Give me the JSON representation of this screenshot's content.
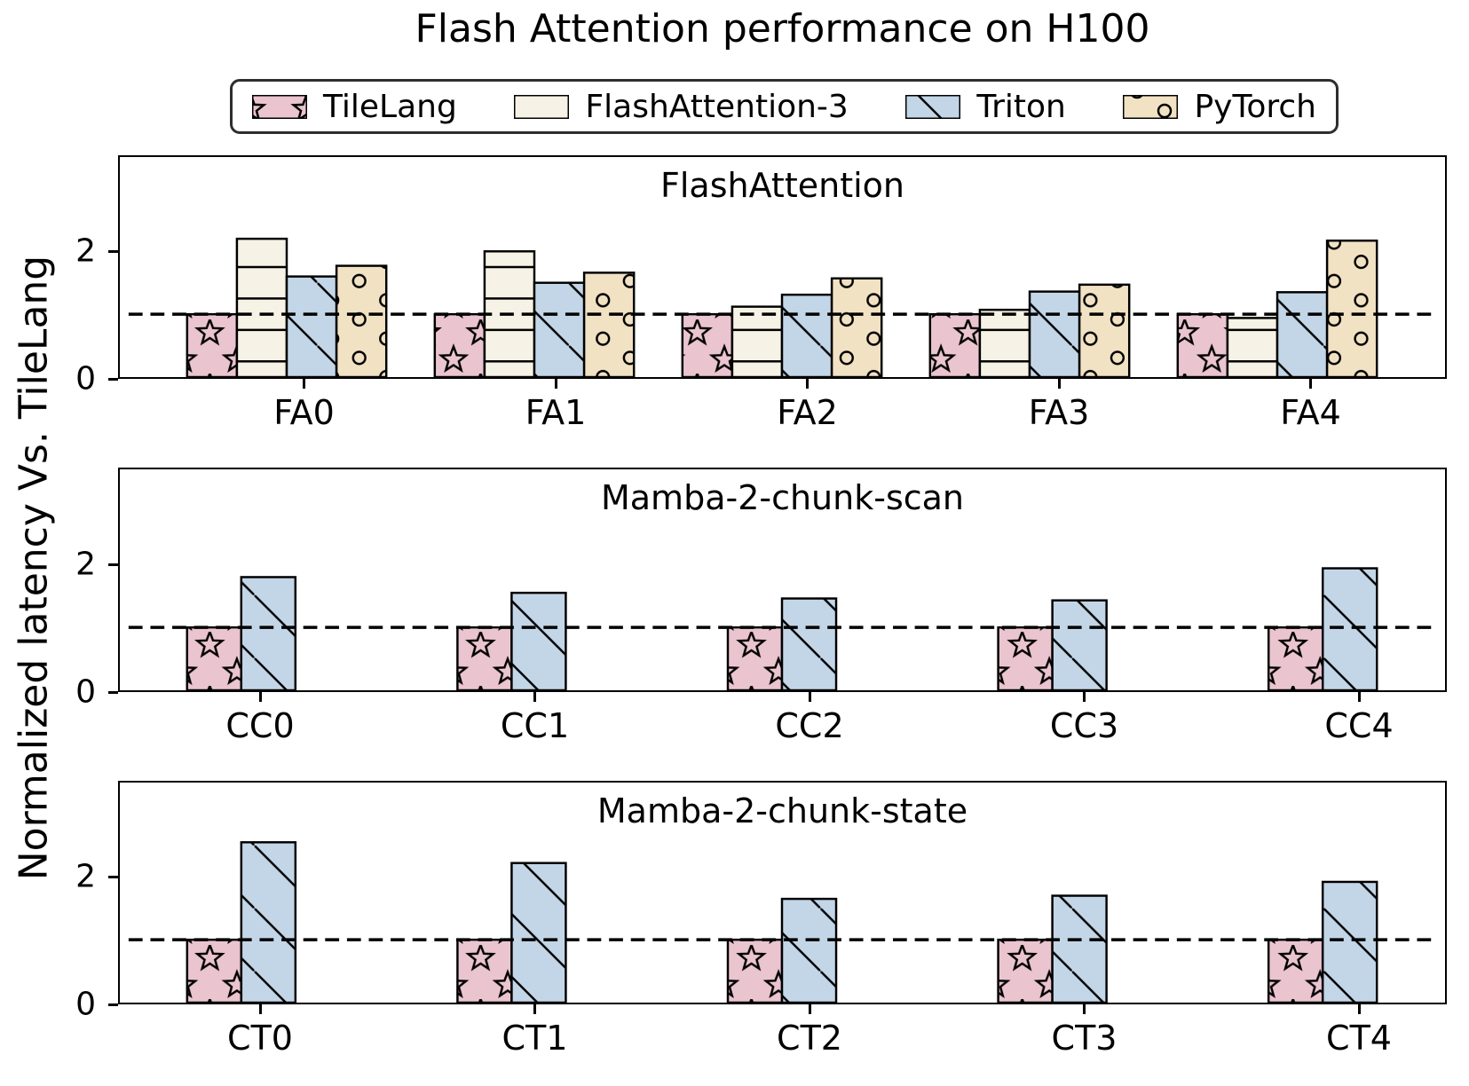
{
  "title": "Flash Attention performance on H100",
  "ylabel": "Normalized latency Vs. TileLang",
  "legend": {
    "items": [
      {
        "label": "TileLang",
        "hatch": "star",
        "color": "#eac4cf"
      },
      {
        "label": "FlashAttention-3",
        "hatch": "hline",
        "color": "#f6f2e5"
      },
      {
        "label": "Triton",
        "hatch": "diag",
        "color": "#c3d6e7"
      },
      {
        "label": "PyTorch",
        "hatch": "circle",
        "color": "#f2e2c4"
      }
    ]
  },
  "baseline": {
    "value": 1.0,
    "style": "dashed",
    "color": "#000000"
  },
  "axis": {
    "yticks": [
      0,
      2
    ],
    "ylim": [
      0,
      3.5
    ]
  },
  "chart_data": [
    {
      "type": "bar",
      "title": "FlashAttention",
      "categories": [
        "FA0",
        "FA1",
        "FA2",
        "FA3",
        "FA4"
      ],
      "series": [
        {
          "name": "TileLang",
          "values": [
            1.0,
            1.0,
            1.0,
            1.0,
            1.0
          ]
        },
        {
          "name": "FlashAttention-3",
          "values": [
            2.2,
            2.0,
            1.12,
            1.07,
            0.94
          ]
        },
        {
          "name": "Triton",
          "values": [
            1.6,
            1.5,
            1.31,
            1.36,
            1.35
          ]
        },
        {
          "name": "PyTorch",
          "values": [
            1.77,
            1.66,
            1.57,
            1.47,
            2.17
          ]
        }
      ],
      "ylim": [
        0,
        3.5
      ],
      "yticks": [
        0,
        2
      ],
      "baseline": 1.0
    },
    {
      "type": "bar",
      "title": "Mamba-2-chunk-scan",
      "categories": [
        "CC0",
        "CC1",
        "CC2",
        "CC3",
        "CC4"
      ],
      "series": [
        {
          "name": "TileLang",
          "values": [
            1.0,
            1.0,
            1.0,
            1.0,
            1.0
          ]
        },
        {
          "name": "Triton",
          "values": [
            1.8,
            1.55,
            1.46,
            1.43,
            1.94
          ]
        }
      ],
      "ylim": [
        0,
        3.5
      ],
      "yticks": [
        0,
        2
      ],
      "baseline": 1.0
    },
    {
      "type": "bar",
      "title": "Mamba-2-chunk-state",
      "categories": [
        "CT0",
        "CT1",
        "CT2",
        "CT3",
        "CT4"
      ],
      "series": [
        {
          "name": "TileLang",
          "values": [
            1.0,
            1.0,
            1.0,
            1.0,
            1.0
          ]
        },
        {
          "name": "Triton",
          "values": [
            2.55,
            2.22,
            1.65,
            1.7,
            1.92
          ]
        }
      ],
      "ylim": [
        0,
        3.5
      ],
      "yticks": [
        0,
        2
      ],
      "baseline": 1.0
    }
  ]
}
